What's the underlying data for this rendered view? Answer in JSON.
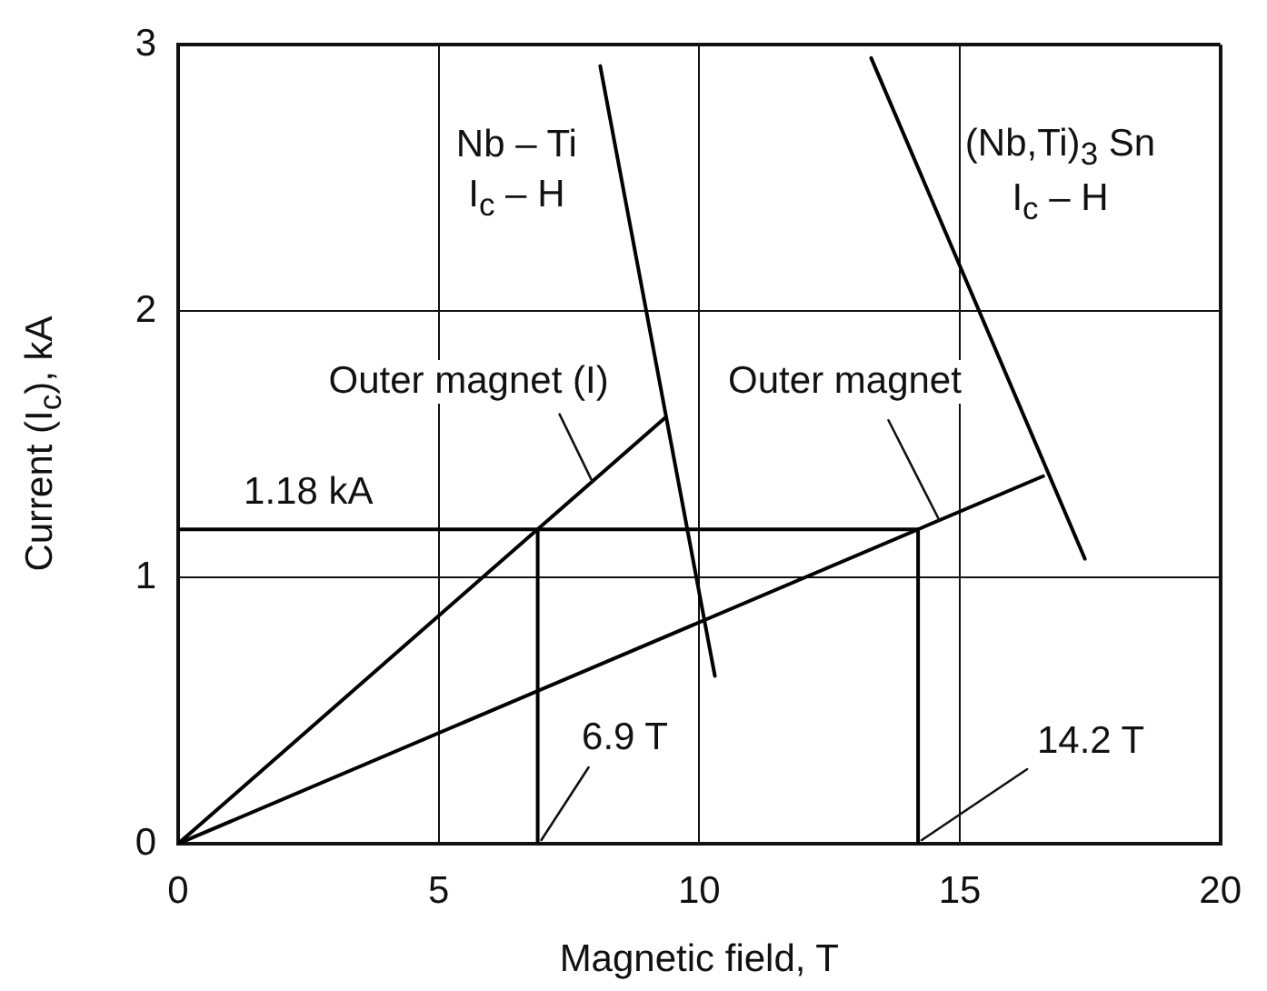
{
  "chart_data": {
    "type": "line",
    "xlabel": "Magnetic field, T",
    "ylabel": "Current (I$_{c}$), kA",
    "xlim": [
      0,
      20
    ],
    "ylim": [
      0,
      3
    ],
    "xticks": [
      0,
      5,
      10,
      15,
      20
    ],
    "yticks": [
      0,
      1,
      2,
      3
    ],
    "grid": true,
    "marker": "none",
    "line_style": "solid",
    "series": [
      {
        "name": "Nb – Ti",
        "color": "#000000",
        "x": [
          8.1,
          10.3
        ],
        "values": [
          2.92,
          0.63
        ]
      },
      {
        "name": "(Nb,Ti)$_{3}$ Sn",
        "color": "#000000",
        "x": [
          13.3,
          17.4
        ],
        "values": [
          2.95,
          1.07
        ]
      },
      {
        "name": "Outer magnet (I)",
        "color": "#000000",
        "x": [
          0,
          9.35
        ],
        "values": [
          0,
          1.6
        ]
      },
      {
        "name": "Outer magnet",
        "color": "#000000",
        "x": [
          0,
          16.6
        ],
        "values": [
          0,
          1.38
        ]
      },
      {
        "color": "#000000",
        "x": [
          0,
          14.2
        ],
        "values": [
          1.18,
          1.18
        ]
      },
      {
        "color": "#000000",
        "x": [
          6.9,
          6.9
        ],
        "values": [
          0,
          1.18
        ]
      },
      {
        "color": "#000000",
        "x": [
          14.2,
          14.2
        ],
        "values": [
          0,
          1.18
        ]
      }
    ],
    "annotations": [
      {
        "text": "1.18 kA",
        "x": 2.5,
        "y": 1.18
      },
      {
        "text": "6.9 T",
        "x": 6.9,
        "y": 0
      },
      {
        "text": "14.2 T",
        "x": 14.2,
        "y": 0
      },
      "I$_{c}$ – H",
      "I$_{c}$ – H"
    ]
  }
}
